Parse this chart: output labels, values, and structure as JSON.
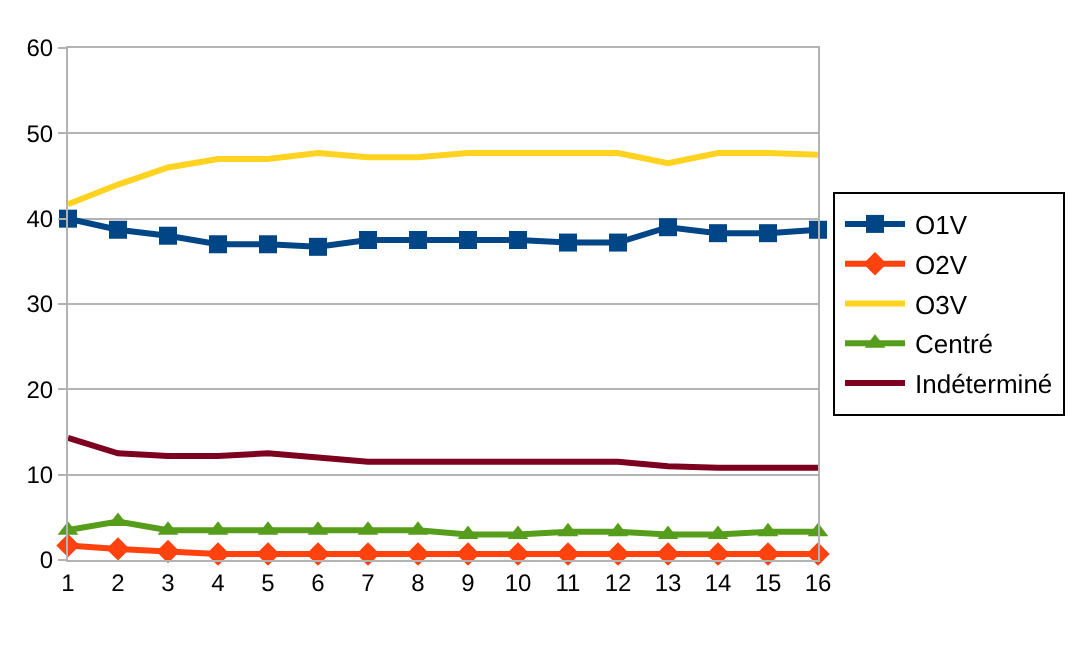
{
  "chart_data": {
    "type": "line",
    "x": [
      1,
      2,
      3,
      4,
      5,
      6,
      7,
      8,
      9,
      10,
      11,
      12,
      13,
      14,
      15,
      16
    ],
    "xlim": [
      1,
      16
    ],
    "xticks": [
      1,
      2,
      3,
      4,
      5,
      6,
      7,
      8,
      9,
      10,
      11,
      12,
      13,
      14,
      15,
      16
    ],
    "ylim": [
      0,
      60
    ],
    "yticks": [
      0,
      10,
      20,
      30,
      40,
      50,
      60
    ],
    "grid": "y",
    "legend": "right",
    "series": [
      {
        "name": "O1V",
        "color": "#004586",
        "marker": "square",
        "values": [
          40,
          38.7,
          38,
          37,
          37,
          36.7,
          37.5,
          37.5,
          37.5,
          37.5,
          37.2,
          37.2,
          39,
          38.3,
          38.3,
          38.7
        ]
      },
      {
        "name": "O2V",
        "color": "#ff420e",
        "marker": "diamond",
        "values": [
          1.7,
          1.3,
          1,
          0.7,
          0.7,
          0.7,
          0.7,
          0.7,
          0.7,
          0.7,
          0.7,
          0.7,
          0.7,
          0.7,
          0.7,
          0.7
        ]
      },
      {
        "name": "O3V",
        "color": "#ffd320",
        "marker": "none",
        "values": [
          41.7,
          44,
          46,
          47,
          47,
          47.7,
          47.2,
          47.2,
          47.7,
          47.7,
          47.7,
          47.7,
          46.5,
          47.7,
          47.7,
          47.5
        ]
      },
      {
        "name": "Centré",
        "color": "#579d1c",
        "marker": "triangle",
        "values": [
          3.5,
          4.5,
          3.5,
          3.5,
          3.5,
          3.5,
          3.5,
          3.5,
          3,
          3,
          3.3,
          3.3,
          3,
          3,
          3.3,
          3.3
        ]
      },
      {
        "name": "Indéterminé",
        "color": "#7e0021",
        "marker": "none",
        "values": [
          14.3,
          12.5,
          12.2,
          12.2,
          12.5,
          12,
          11.5,
          11.5,
          11.5,
          11.5,
          11.5,
          11.5,
          11,
          10.8,
          10.8,
          10.8
        ]
      }
    ]
  }
}
